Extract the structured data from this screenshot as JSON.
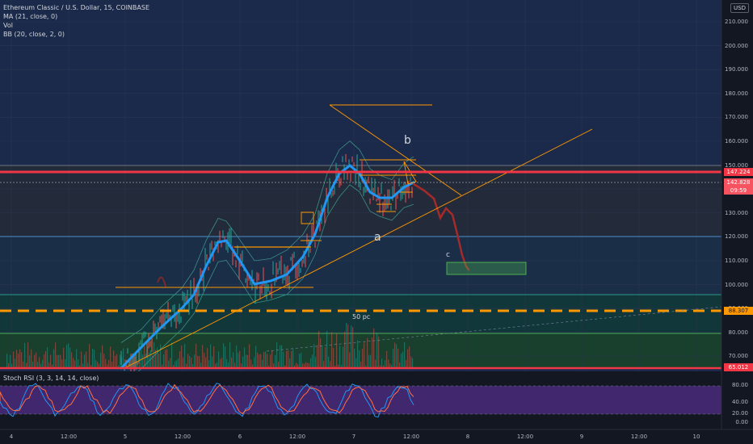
{
  "legend": {
    "symbol_line": "Ethereum Classic / U.S. Dollar, 15, COINBASE",
    "ma": "MA (21, close, 0)",
    "vol": "Vol",
    "bb": "BB (20, close, 2, 0)"
  },
  "stoch_rsi": {
    "label": "Stoch RSI (3, 3, 14, 14, close)"
  },
  "currency": "USD",
  "price_axis": {
    "ticks": [
      "210.000",
      "200.000",
      "190.000",
      "180.000",
      "170.000",
      "160.000",
      "150.000",
      "140.000",
      "130.000",
      "120.000",
      "110.000",
      "100.000",
      "90.000",
      "80.000",
      "70.000"
    ]
  },
  "rsi_axis": {
    "ticks": [
      "80.00",
      "40.00",
      "20.00",
      "0.00"
    ]
  },
  "price_tags": {
    "red_level": "147.224",
    "current": "142.828",
    "countdown": "09:59",
    "orange_level": "88.307",
    "bottom_level": "65.012"
  },
  "time_axis": {
    "ticks": [
      "4",
      "12:00",
      "5",
      "12:00",
      "6",
      "12:00",
      "7",
      "12:00",
      "8",
      "12:00",
      "9",
      "12:00",
      "10",
      "12:00"
    ]
  },
  "annotations": {
    "b": "b",
    "a": "a",
    "c": "c",
    "pc": "50 pc"
  },
  "colors": {
    "background": "#131722",
    "red_line": "#f23645",
    "orange": "#ff9800",
    "ma_line": "#2196f3",
    "projection": "#a52a2a",
    "target_box": "#4caf50",
    "rsi_bg": "#4a2a7a"
  }
}
